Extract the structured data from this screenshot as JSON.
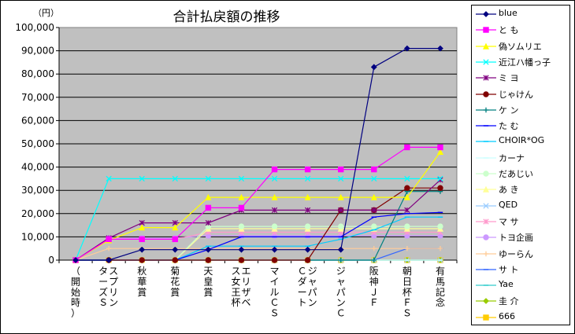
{
  "chart_data": {
    "type": "line",
    "title": "合計払戻額の推移",
    "yunit": "（円）",
    "ylim": [
      0,
      100000
    ],
    "ytick_step": 10000,
    "ytick_labels": [
      "0",
      "10,000",
      "20,000",
      "30,000",
      "40,000",
      "50,000",
      "60,000",
      "70,000",
      "80,000",
      "90,000",
      "100,000"
    ],
    "categories": [
      "（開始時）",
      "スプリンターズＳ",
      "秋華賞",
      "菊花賞",
      "天皇賞",
      "エリザベス女王杯",
      "マイルＣＳ",
      "ジャパンＣダート",
      "ジャパンＣ",
      "阪神ＪＦ",
      "朝日杯ＦＳ",
      "有馬記念"
    ],
    "series": [
      {
        "name": "blue",
        "color": "#000080",
        "marker": "diamond",
        "values": [
          0,
          0,
          4500,
          4500,
          4500,
          4500,
          4500,
          4500,
          4500,
          83000,
          91000,
          91000
        ]
      },
      {
        "name": "と も",
        "color": "#ff00ff",
        "marker": "square",
        "values": [
          0,
          9000,
          9000,
          9000,
          22500,
          22500,
          39000,
          39000,
          39000,
          39000,
          48500,
          48500
        ]
      },
      {
        "name": "偽ソムリエ",
        "color": "#ffff00",
        "marker": "triangle",
        "values": [
          0,
          8500,
          14000,
          14000,
          27000,
          27000,
          27000,
          27000,
          27000,
          27000,
          27000,
          46500
        ]
      },
      {
        "name": "近江ハ幡っ子",
        "color": "#00ffff",
        "marker": "x",
        "values": [
          0,
          35000,
          35000,
          35000,
          35000,
          35000,
          35000,
          35000,
          35000,
          35000,
          35000,
          35000
        ]
      },
      {
        "name": "ミ ヨ",
        "color": "#800080",
        "marker": "star",
        "values": [
          0,
          9500,
          16000,
          16000,
          16000,
          21500,
          21500,
          21500,
          21500,
          21500,
          21500,
          34500
        ]
      },
      {
        "name": "じゃけん",
        "color": "#800000",
        "marker": "circle",
        "values": [
          0,
          0,
          0,
          0,
          0,
          0,
          0,
          0,
          21500,
          21500,
          31000,
          31000
        ]
      },
      {
        "name": "ケ ン",
        "color": "#008080",
        "marker": "plus",
        "values": [
          0,
          0,
          0,
          0,
          0,
          0,
          0,
          0,
          0,
          0,
          29500,
          29500
        ]
      },
      {
        "name": "た む",
        "color": "#0000ff",
        "marker": "dash",
        "values": [
          0,
          0,
          0,
          0,
          4500,
          10000,
          10000,
          10000,
          10000,
          18500,
          20000,
          20500
        ]
      },
      {
        "name": "CHOIR*OG",
        "color": "#00ccff",
        "marker": "dash",
        "values": [
          0,
          0,
          0,
          0,
          6000,
          6000,
          6000,
          6000,
          9000,
          13000,
          18500,
          18500
        ]
      },
      {
        "name": "カーナ",
        "color": "#ccffff",
        "marker": "dash",
        "values": [
          0,
          0,
          0,
          0,
          0,
          0,
          0,
          0,
          0,
          0,
          0,
          0
        ]
      },
      {
        "name": "だあじい",
        "color": "#ccffcc",
        "marker": "circle",
        "values": [
          0,
          0,
          0,
          0,
          14500,
          14500,
          14500,
          14500,
          14500,
          14500,
          14500,
          14500
        ]
      },
      {
        "name": "あ き",
        "color": "#ffff99",
        "marker": "triangle",
        "values": [
          0,
          0,
          0,
          0,
          13500,
          13500,
          13500,
          13500,
          13500,
          13500,
          13500,
          13500
        ]
      },
      {
        "name": "QED",
        "color": "#99ccff",
        "marker": "x",
        "values": [
          0,
          0,
          0,
          0,
          0,
          0,
          0,
          0,
          0,
          0,
          0,
          0
        ]
      },
      {
        "name": "マ サ",
        "color": "#ff99cc",
        "marker": "star",
        "values": [
          0,
          9000,
          9000,
          9000,
          12000,
          12000,
          12000,
          12000,
          12000,
          12000,
          12000,
          12000
        ]
      },
      {
        "name": "トヨ企画",
        "color": "#cc99ff",
        "marker": "circle",
        "values": [
          0,
          9500,
          9500,
          9500,
          10500,
          10500,
          10500,
          10500,
          10500,
          10500,
          10500,
          10500
        ]
      },
      {
        "name": "ゆーらん",
        "color": "#ffcc99",
        "marker": "plus",
        "values": [
          0,
          5000,
          5000,
          5000,
          5000,
          5000,
          5000,
          5000,
          5000,
          5000,
          5000,
          5000
        ]
      },
      {
        "name": "サ ト",
        "color": "#3366ff",
        "marker": "dash",
        "values": [
          0,
          0,
          0,
          0,
          0,
          0,
          0,
          0,
          0,
          0,
          5000,
          5000
        ]
      },
      {
        "name": "Yae",
        "color": "#33cccc",
        "marker": "dash",
        "values": [
          0,
          0,
          0,
          0,
          0,
          0,
          0,
          0,
          0,
          0,
          0,
          0
        ]
      },
      {
        "name": "圭 介",
        "color": "#99cc00",
        "marker": "diamond",
        "values": [
          0,
          0,
          0,
          0,
          0,
          0,
          0,
          0,
          0,
          0,
          0,
          0
        ]
      },
      {
        "name": "666",
        "color": "#ffcc00",
        "marker": "square",
        "values": [
          0,
          0,
          0,
          0,
          0,
          0,
          0,
          0,
          0,
          0,
          0,
          0
        ]
      }
    ],
    "grid": true,
    "legend": "right",
    "plot_background": "#c0c0c0"
  }
}
